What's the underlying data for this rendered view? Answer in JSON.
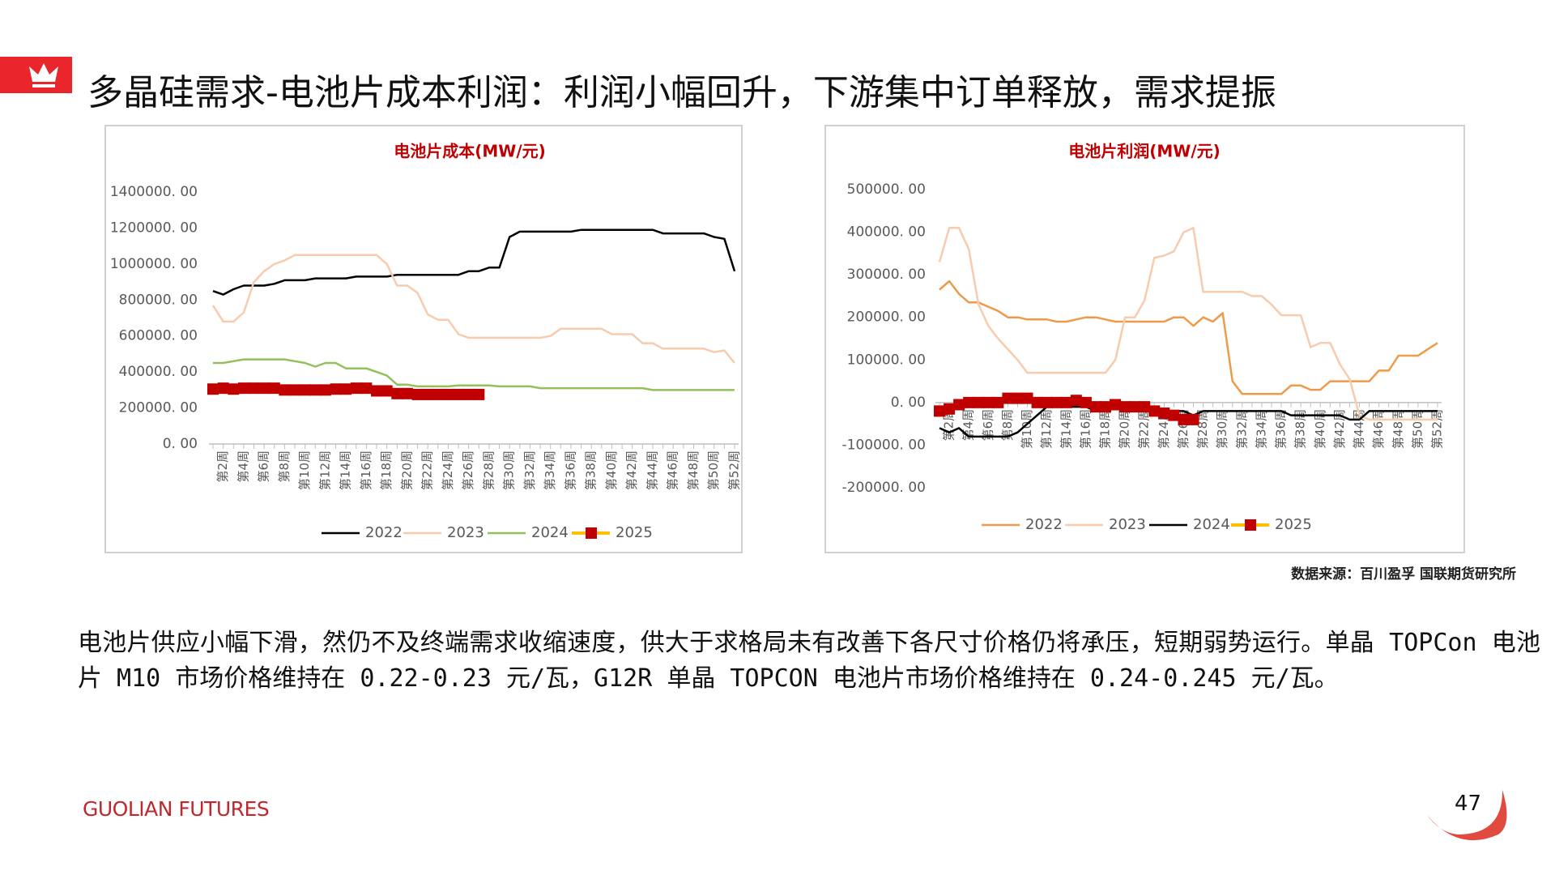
{
  "header": {
    "title": "多晶硅需求-电池片成本利润：利润小幅回升，下游集中订单释放，需求提振"
  },
  "source": "数据来源：百川盈孚 国联期货研究所",
  "body": "电池片供应小幅下滑，然仍不及终端需求收缩速度，供大于求格局未有改善下各尺寸价格仍将承压，短期弱势运行。单晶 TOPCon 电池片 M10 市场价格维持在 0.22-0.23 元/瓦，G12R 单晶 TOPCON 电池片市场价格维持在 0.24-0.245 元/瓦。",
  "footer": {
    "brand": "GUOLIAN FUTURES",
    "page": "47"
  },
  "chart_data": [
    {
      "type": "line",
      "title": "电池片成本(MW/元)",
      "grid": false,
      "legend": "bottom",
      "categories": [
        null,
        "第2周",
        null,
        "第4周",
        null,
        "第6周",
        null,
        "第8周",
        null,
        "第10周",
        null,
        "第12周",
        null,
        "第14周",
        null,
        "第16周",
        null,
        "第18周",
        null,
        "第20周",
        null,
        "第22周",
        null,
        "第24周",
        null,
        "第26周",
        null,
        "第28周",
        null,
        "第30周",
        null,
        "第32周",
        null,
        "第34周",
        null,
        "第36周",
        null,
        "第38周",
        null,
        "第40周",
        null,
        "第42周",
        null,
        "第44周",
        null,
        "第46周",
        null,
        "第48周",
        null,
        "第50周",
        null,
        "第52周"
      ],
      "ylim": [
        0,
        1400000
      ],
      "yticks": [
        {
          "value": 0,
          "label": "0. 00"
        },
        {
          "value": 200000,
          "label": "200000. 00"
        },
        {
          "value": 400000,
          "label": "400000. 00"
        },
        {
          "value": 600000,
          "label": "600000. 00"
        },
        {
          "value": 800000,
          "label": "800000. 00"
        },
        {
          "value": 1000000,
          "label": "1000000. 00"
        },
        {
          "value": 1200000,
          "label": "1200000. 00"
        },
        {
          "value": 1400000,
          "label": "1400000. 00"
        }
      ],
      "series": [
        {
          "name": "2022",
          "color": "#000000",
          "values": [
            850000,
            830000,
            860000,
            880000,
            880000,
            880000,
            890000,
            910000,
            910000,
            910000,
            920000,
            920000,
            920000,
            920000,
            930000,
            930000,
            930000,
            930000,
            940000,
            940000,
            940000,
            940000,
            940000,
            940000,
            940000,
            960000,
            960000,
            980000,
            980000,
            1150000,
            1180000,
            1180000,
            1180000,
            1180000,
            1180000,
            1180000,
            1190000,
            1190000,
            1190000,
            1190000,
            1190000,
            1190000,
            1190000,
            1190000,
            1170000,
            1170000,
            1170000,
            1170000,
            1170000,
            1150000,
            1140000,
            960000
          ]
        },
        {
          "name": "2023",
          "color": "#f8cbad",
          "values": [
            770000,
            680000,
            680000,
            730000,
            900000,
            960000,
            1000000,
            1020000,
            1050000,
            1050000,
            1050000,
            1050000,
            1050000,
            1050000,
            1050000,
            1050000,
            1050000,
            1000000,
            880000,
            880000,
            840000,
            720000,
            690000,
            690000,
            610000,
            590000,
            590000,
            590000,
            590000,
            590000,
            590000,
            590000,
            590000,
            600000,
            640000,
            640000,
            640000,
            640000,
            640000,
            610000,
            610000,
            610000,
            560000,
            560000,
            530000,
            530000,
            530000,
            530000,
            530000,
            510000,
            520000,
            450000
          ]
        },
        {
          "name": "2024",
          "color": "#92c05a",
          "values": [
            450000,
            450000,
            460000,
            470000,
            470000,
            470000,
            470000,
            470000,
            460000,
            450000,
            430000,
            450000,
            450000,
            420000,
            420000,
            420000,
            400000,
            380000,
            330000,
            330000,
            320000,
            320000,
            320000,
            320000,
            325000,
            325000,
            325000,
            325000,
            320000,
            320000,
            320000,
            320000,
            310000,
            310000,
            310000,
            310000,
            310000,
            310000,
            310000,
            310000,
            310000,
            310000,
            310000,
            300000,
            300000,
            300000,
            300000,
            300000,
            300000,
            300000,
            300000,
            300000
          ]
        },
        {
          "name": "2025",
          "color": "#c00000",
          "line_color": "#ffc000",
          "marker": "square",
          "values": [
            305000,
            310000,
            305000,
            310000,
            310000,
            310000,
            310000,
            300000,
            300000,
            300000,
            300000,
            300000,
            305000,
            305000,
            310000,
            310000,
            295000,
            295000,
            280000,
            280000,
            275000,
            275000,
            275000,
            275000,
            275000,
            275000,
            275000,
            null,
            null,
            null,
            null,
            null,
            null,
            null,
            null,
            null,
            null,
            null,
            null,
            null,
            null,
            null,
            null,
            null,
            null,
            null,
            null,
            null,
            null,
            null,
            null,
            null
          ]
        }
      ]
    },
    {
      "type": "line",
      "title": "电池片利润(MW/元)",
      "grid": false,
      "legend": "bottom",
      "categories": [
        null,
        "第2周",
        null,
        "第4周",
        null,
        "第6周",
        null,
        "第8周",
        null,
        "第10周",
        null,
        "第12周",
        null,
        "第14周",
        null,
        "第16周",
        null,
        "第18周",
        null,
        "第20周",
        null,
        "第22周",
        null,
        "第24周",
        null,
        "第26周",
        null,
        "第28周",
        null,
        "第30周",
        null,
        "第32周",
        null,
        "第34周",
        null,
        "第36周",
        null,
        "第38周",
        null,
        "第40周",
        null,
        "第42周",
        null,
        "第44周",
        null,
        "第46周",
        null,
        "第48周",
        null,
        "第50周",
        null,
        "第52周"
      ],
      "ylim": [
        -200000,
        500000
      ],
      "yticks": [
        {
          "value": -200000,
          "label": "-200000. 00"
        },
        {
          "value": -100000,
          "label": "-100000. 00"
        },
        {
          "value": 0,
          "label": "0. 00"
        },
        {
          "value": 100000,
          "label": "100000. 00"
        },
        {
          "value": 200000,
          "label": "200000. 00"
        },
        {
          "value": 300000,
          "label": "300000. 00"
        },
        {
          "value": 400000,
          "label": "400000. 00"
        },
        {
          "value": 500000,
          "label": "500000. 00"
        }
      ],
      "series": [
        {
          "name": "2022",
          "color": "#ed9b4a",
          "values": [
            265000,
            285000,
            255000,
            235000,
            235000,
            225000,
            215000,
            200000,
            200000,
            195000,
            195000,
            195000,
            190000,
            190000,
            195000,
            200000,
            200000,
            195000,
            190000,
            190000,
            190000,
            190000,
            190000,
            190000,
            200000,
            200000,
            180000,
            200000,
            190000,
            210000,
            50000,
            20000,
            20000,
            20000,
            20000,
            20000,
            40000,
            40000,
            30000,
            30000,
            50000,
            50000,
            50000,
            50000,
            50000,
            75000,
            75000,
            110000,
            110000,
            110000,
            125000,
            140000
          ]
        },
        {
          "name": "2023",
          "color": "#f8cbad",
          "values": [
            330000,
            410000,
            410000,
            360000,
            230000,
            180000,
            150000,
            125000,
            100000,
            70000,
            70000,
            70000,
            70000,
            70000,
            70000,
            70000,
            70000,
            70000,
            100000,
            200000,
            200000,
            240000,
            340000,
            345000,
            355000,
            400000,
            410000,
            260000,
            260000,
            260000,
            260000,
            260000,
            250000,
            250000,
            230000,
            205000,
            205000,
            205000,
            130000,
            140000,
            140000,
            90000,
            55000,
            -30000,
            -40000,
            -40000,
            -40000,
            -40000,
            -40000,
            -40000,
            -40000,
            -40000
          ]
        },
        {
          "name": "2024",
          "color": "#000000",
          "values": [
            -60000,
            -70000,
            -60000,
            -80000,
            -80000,
            -80000,
            -80000,
            -80000,
            -70000,
            -50000,
            -30000,
            -10000,
            -10000,
            -10000,
            -10000,
            -10000,
            -20000,
            -20000,
            -10000,
            -20000,
            -20000,
            -10000,
            -20000,
            -20000,
            -20000,
            -20000,
            -30000,
            -20000,
            -20000,
            -20000,
            -20000,
            -20000,
            -20000,
            -20000,
            -20000,
            -20000,
            -30000,
            -30000,
            -30000,
            -30000,
            -30000,
            -30000,
            -40000,
            -40000,
            -20000,
            -20000,
            -20000,
            -20000,
            -20000,
            -20000,
            -20000,
            -20000
          ]
        },
        {
          "name": "2025",
          "color": "#c00000",
          "line_color": "#ffc000",
          "marker": "square",
          "values": [
            -20000,
            -15000,
            -5000,
            0,
            0,
            0,
            0,
            10000,
            10000,
            10000,
            0,
            0,
            0,
            0,
            5000,
            0,
            -10000,
            -10000,
            -5000,
            -10000,
            -10000,
            -10000,
            -20000,
            -25000,
            -30000,
            -40000,
            -40000,
            null,
            null,
            null,
            null,
            null,
            null,
            null,
            null,
            null,
            null,
            null,
            null,
            null,
            null,
            null,
            null,
            null,
            null,
            null,
            null,
            null,
            null,
            null,
            null,
            null
          ]
        }
      ]
    }
  ]
}
